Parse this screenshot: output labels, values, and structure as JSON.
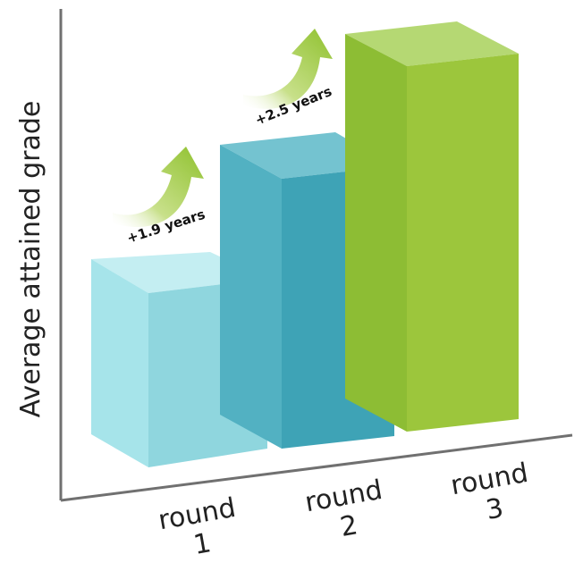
{
  "chart_data": {
    "type": "bar",
    "title": "",
    "ylabel": "Average attained grade",
    "xlabel": "",
    "categories": [
      {
        "line1": "round",
        "line2": "1"
      },
      {
        "line1": "round",
        "line2": "2"
      },
      {
        "line1": "round",
        "line2": "3"
      }
    ],
    "values": [
      5.0,
      6.9,
      9.4
    ],
    "ylim": [
      0,
      10
    ],
    "grid": false,
    "annotations": [
      "+1.9 years",
      "+2.5 years"
    ],
    "colors": {
      "bar1": {
        "front": "#a6e4ea",
        "side": "#8fd6de",
        "top": "#c4eef2"
      },
      "bar2": {
        "front": "#52b1c2",
        "side": "#3ea3b6",
        "top": "#74c3d0"
      },
      "bar3": {
        "front": "#8dbd34",
        "side": "#9cc63c",
        "top": "#b5d873"
      },
      "arrow": "#9cca3c",
      "axis": "#707070"
    }
  }
}
